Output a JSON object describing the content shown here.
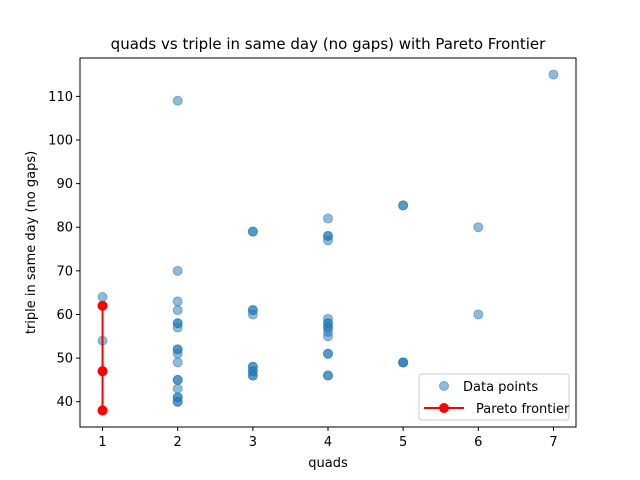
{
  "chart_data": {
    "type": "scatter",
    "title": "quads vs triple in same day (no gaps) with Pareto Frontier",
    "xlabel": "quads",
    "ylabel": "triple in same day (no gaps)",
    "xlim": [
      0.7,
      7.3
    ],
    "ylim": [
      34.2,
      118.8
    ],
    "xticks": [
      1,
      2,
      3,
      4,
      5,
      6,
      7
    ],
    "yticks": [
      40,
      50,
      60,
      70,
      80,
      90,
      100,
      110
    ],
    "grid": false,
    "legend_position": "lower right",
    "series": [
      {
        "name": "Data points",
        "kind": "scatter",
        "color": "#1f77b4",
        "alpha": 0.5,
        "points": [
          [
            1,
            64
          ],
          [
            1,
            62
          ],
          [
            1,
            54
          ],
          [
            1,
            47
          ],
          [
            1,
            38
          ],
          [
            2,
            109
          ],
          [
            2,
            70
          ],
          [
            2,
            63
          ],
          [
            2,
            61
          ],
          [
            2,
            58
          ],
          [
            2,
            58
          ],
          [
            2,
            57
          ],
          [
            2,
            52
          ],
          [
            2,
            52
          ],
          [
            2,
            51
          ],
          [
            2,
            49
          ],
          [
            2,
            45
          ],
          [
            2,
            45
          ],
          [
            2,
            43
          ],
          [
            2,
            41
          ],
          [
            2,
            41
          ],
          [
            2,
            40
          ],
          [
            2,
            40
          ],
          [
            3,
            79
          ],
          [
            3,
            79
          ],
          [
            3,
            61
          ],
          [
            3,
            61
          ],
          [
            3,
            60
          ],
          [
            3,
            48
          ],
          [
            3,
            48
          ],
          [
            3,
            47
          ],
          [
            3,
            47
          ],
          [
            3,
            46
          ],
          [
            3,
            46
          ],
          [
            4,
            82
          ],
          [
            4,
            78
          ],
          [
            4,
            78
          ],
          [
            4,
            77
          ],
          [
            4,
            59
          ],
          [
            4,
            58
          ],
          [
            4,
            58
          ],
          [
            4,
            57
          ],
          [
            4,
            57
          ],
          [
            4,
            56
          ],
          [
            4,
            55
          ],
          [
            4,
            51
          ],
          [
            4,
            51
          ],
          [
            4,
            46
          ],
          [
            4,
            46
          ],
          [
            5,
            85
          ],
          [
            5,
            85
          ],
          [
            5,
            49
          ],
          [
            5,
            49
          ],
          [
            5,
            49
          ],
          [
            6,
            80
          ],
          [
            6,
            60
          ],
          [
            7,
            115
          ]
        ]
      },
      {
        "name": "Pareto frontier",
        "kind": "line-marker",
        "color": "#ff0000",
        "points": [
          [
            1,
            38
          ],
          [
            1,
            47
          ],
          [
            1,
            62
          ]
        ]
      }
    ]
  }
}
